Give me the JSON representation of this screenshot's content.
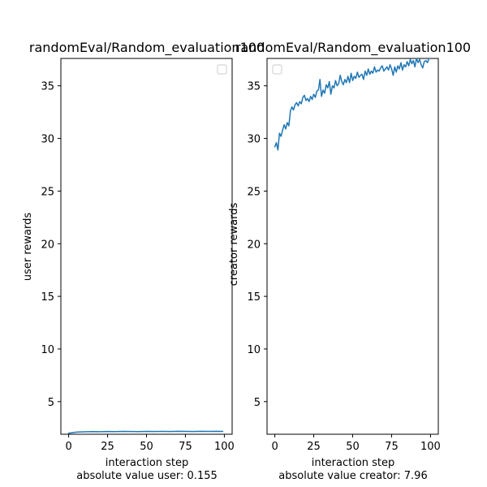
{
  "colors": {
    "series": "#1f77b4",
    "background": "#ffffff"
  },
  "chart_data": [
    {
      "type": "line",
      "title": "randomEval/Random_evaluation100",
      "xlabel": "interaction step",
      "ylabel": "user rewards",
      "note": "absolute value user: 0.155",
      "xlim": [
        -5,
        105
      ],
      "ylim": [
        1.9,
        37.6
      ],
      "xticks": [
        0,
        25,
        50,
        75,
        100
      ],
      "yticks": [
        5,
        10,
        15,
        20,
        25,
        30,
        35
      ],
      "legend": "top-right (empty)",
      "grid": false,
      "series": [
        {
          "x": [
            0,
            5,
            10,
            15,
            20,
            25,
            30,
            35,
            40,
            45,
            50,
            55,
            60,
            65,
            70,
            75,
            80,
            85,
            90,
            95,
            99
          ],
          "values": [
            2.0,
            2.1,
            2.13,
            2.15,
            2.14,
            2.16,
            2.15,
            2.17,
            2.16,
            2.15,
            2.17,
            2.16,
            2.17,
            2.16,
            2.18,
            2.17,
            2.16,
            2.18,
            2.17,
            2.18,
            2.17
          ]
        }
      ]
    },
    {
      "type": "line",
      "title": "randomEval/Random_evaluation100",
      "xlabel": "interaction step",
      "ylabel": "creator rewards",
      "note": "absolute value creator: 7.96",
      "xlim": [
        -5,
        105
      ],
      "ylim": [
        1.9,
        37.6
      ],
      "xticks": [
        0,
        25,
        50,
        75,
        100
      ],
      "yticks": [
        5,
        10,
        15,
        20,
        25,
        30,
        35
      ],
      "legend": "top-left (empty)",
      "grid": false,
      "series": [
        {
          "x": [
            0,
            1,
            2,
            3,
            4,
            5,
            6,
            7,
            8,
            9,
            10,
            11,
            12,
            13,
            14,
            15,
            16,
            17,
            18,
            19,
            20,
            21,
            22,
            23,
            24,
            25,
            26,
            27,
            28,
            29,
            30,
            31,
            32,
            33,
            34,
            35,
            36,
            37,
            38,
            39,
            40,
            41,
            42,
            43,
            44,
            45,
            46,
            47,
            48,
            49,
            50,
            51,
            52,
            53,
            54,
            55,
            56,
            57,
            58,
            59,
            60,
            61,
            62,
            63,
            64,
            65,
            66,
            67,
            68,
            69,
            70,
            71,
            72,
            73,
            74,
            75,
            76,
            77,
            78,
            79,
            80,
            81,
            82,
            83,
            84,
            85,
            86,
            87,
            88,
            89,
            90,
            91,
            92,
            93,
            94,
            95,
            96,
            97,
            98,
            99
          ],
          "values": [
            29.2,
            29.6,
            28.9,
            30.5,
            30.2,
            30.8,
            31.3,
            30.9,
            31.5,
            31.2,
            32.6,
            33.0,
            32.7,
            33.2,
            33.4,
            33.1,
            33.5,
            33.3,
            33.9,
            34.1,
            33.6,
            33.8,
            33.5,
            34.0,
            33.7,
            34.2,
            33.9,
            34.5,
            34.6,
            35.6,
            34.0,
            34.6,
            34.3,
            35.1,
            34.8,
            35.4,
            34.2,
            35.0,
            34.8,
            35.5,
            35.0,
            35.2,
            36.0,
            35.4,
            35.1,
            35.6,
            35.3,
            35.9,
            35.3,
            36.2,
            35.5,
            35.9,
            35.7,
            36.3,
            35.8,
            36.0,
            36.1,
            35.6,
            36.4,
            36.0,
            36.6,
            36.1,
            36.4,
            36.2,
            36.8,
            36.3,
            36.5,
            36.4,
            36.7,
            36.9,
            36.4,
            36.6,
            36.8,
            36.5,
            37.0,
            36.6,
            36.0,
            36.8,
            36.3,
            36.9,
            36.6,
            37.2,
            36.5,
            37.0,
            36.8,
            37.3,
            36.9,
            37.5,
            37.1,
            37.4,
            36.8,
            37.6,
            37.2,
            37.5,
            37.0,
            36.7,
            37.3,
            37.4,
            37.2,
            37.6
          ]
        }
      ]
    }
  ]
}
